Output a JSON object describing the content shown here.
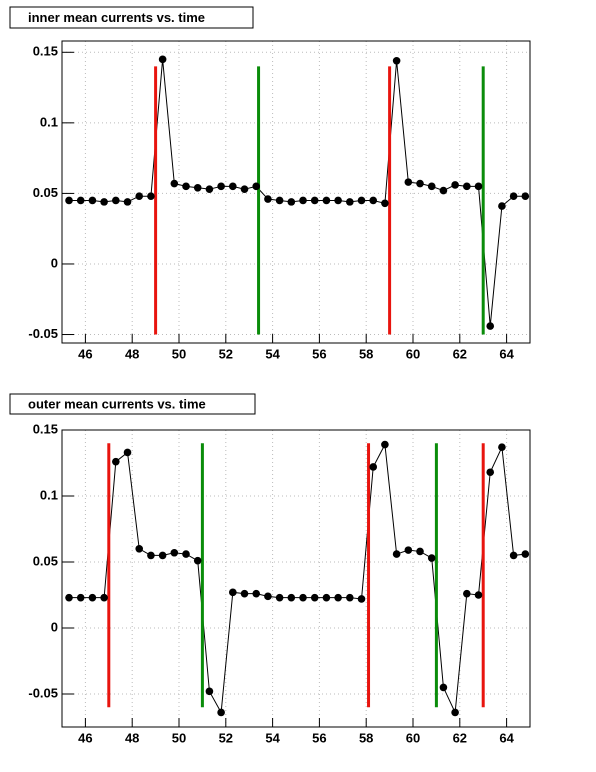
{
  "chart_data": [
    {
      "type": "line",
      "title": "inner mean currents vs. time",
      "color": "#000000",
      "x": [
        45.3,
        45.8,
        46.3,
        46.8,
        47.3,
        47.8,
        48.3,
        48.8,
        49.3,
        49.8,
        50.3,
        50.8,
        51.3,
        51.8,
        52.3,
        52.8,
        53.3,
        53.8,
        54.3,
        54.8,
        55.3,
        55.8,
        56.3,
        56.8,
        57.3,
        57.8,
        58.3,
        58.8,
        59.3,
        59.8,
        60.3,
        60.8,
        61.3,
        61.8,
        62.3,
        62.8,
        63.3,
        63.8,
        64.3,
        64.8
      ],
      "values": [
        0.045,
        0.045,
        0.045,
        0.044,
        0.045,
        0.044,
        0.048,
        0.048,
        0.145,
        0.057,
        0.055,
        0.054,
        0.053,
        0.055,
        0.055,
        0.053,
        0.055,
        0.046,
        0.045,
        0.044,
        0.045,
        0.045,
        0.045,
        0.045,
        0.044,
        0.045,
        0.045,
        0.043,
        0.144,
        0.058,
        0.057,
        0.055,
        0.052,
        0.056,
        0.055,
        0.055,
        -0.044,
        0.041,
        0.048,
        0.048
      ],
      "vlines": {
        "x": [
          49,
          53.4,
          59,
          63
        ],
        "colors": [
          "#e8140e",
          "#0a8c0a",
          "#e8140e",
          "#0a8c0a"
        ],
        "ymin": -0.05,
        "ymax": 0.14
      },
      "xlim": [
        45,
        65
      ],
      "xticks": [
        46,
        48,
        50,
        52,
        54,
        56,
        58,
        60,
        62,
        64
      ],
      "ylim": [
        -0.056,
        0.158
      ],
      "yticks": [
        -0.05,
        0,
        0.05,
        0.1,
        0.15
      ],
      "grid": true
    },
    {
      "type": "line",
      "title": "outer mean currents vs. time",
      "color": "#000000",
      "x": [
        45.3,
        45.8,
        46.3,
        46.8,
        47.3,
        47.8,
        48.3,
        48.8,
        49.3,
        49.8,
        50.3,
        50.8,
        51.3,
        51.8,
        52.3,
        52.8,
        53.3,
        53.8,
        54.3,
        54.8,
        55.3,
        55.8,
        56.3,
        56.8,
        57.3,
        57.8,
        58.3,
        58.8,
        59.3,
        59.8,
        60.3,
        60.8,
        61.3,
        61.8,
        62.3,
        62.8,
        63.3,
        63.8,
        64.3,
        64.8
      ],
      "values": [
        0.023,
        0.023,
        0.023,
        0.023,
        0.126,
        0.133,
        0.06,
        0.055,
        0.055,
        0.057,
        0.056,
        0.051,
        -0.048,
        -0.064,
        0.027,
        0.026,
        0.026,
        0.024,
        0.023,
        0.023,
        0.023,
        0.023,
        0.023,
        0.023,
        0.023,
        0.022,
        0.122,
        0.139,
        0.056,
        0.059,
        0.058,
        0.053,
        -0.045,
        -0.064,
        0.026,
        0.025,
        0.118,
        0.137,
        0.055,
        0.056
      ],
      "vlines": {
        "x": [
          47,
          51,
          58.1,
          61,
          63
        ],
        "colors": [
          "#e8140e",
          "#0a8c0a",
          "#e8140e",
          "#0a8c0a",
          "#e8140e"
        ],
        "ymin": -0.06,
        "ymax": 0.14
      },
      "xlim": [
        45,
        65
      ],
      "xticks": [
        46,
        48,
        50,
        52,
        54,
        56,
        58,
        60,
        62,
        64
      ],
      "ylim": [
        -0.075,
        0.15
      ],
      "yticks": [
        -0.05,
        0,
        0.05,
        0.1,
        0.15
      ],
      "grid": true
    }
  ]
}
